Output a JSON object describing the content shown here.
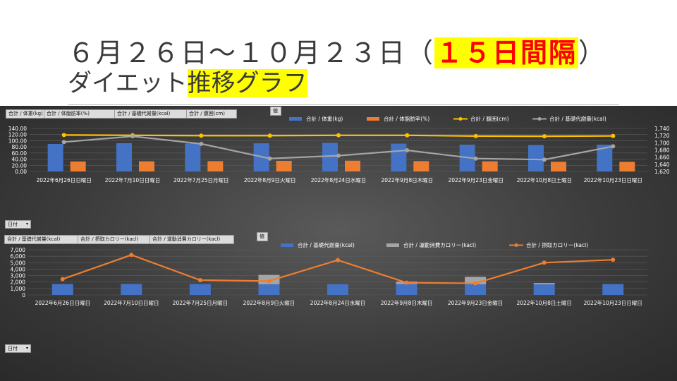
{
  "slide": {
    "title_prefix": "６月２６日～１０月２３日（",
    "title_highlight": "１５日間隔",
    "title_suffix": "）",
    "subtitle_prefix": "ダイエット",
    "subtitle_highlight": "推移グラフ"
  },
  "chart1_fields": [
    "合計 / 体重(kg)",
    "合計 / 体脂肪率(%)",
    "合計 / 基礎代謝量(kcal)",
    "合計 / 腹囲(cm)"
  ],
  "chart2_fields": [
    "合計 / 基礎代謝量(kcal)",
    "合計 / 摂取カロリー(kacl)",
    "合計 / 運動消費カロリー(kacl)"
  ],
  "values_button": "値",
  "date_filter": "日付",
  "colors": {
    "blue": "#4472c4",
    "orange": "#ed7d31",
    "gray": "#a5a5a5",
    "yellow": "#ffc000"
  },
  "chart_data": [
    {
      "type": "bar",
      "categories": [
        "2022年6月26日日曜日",
        "2022年7月10日日曜日",
        "2022年7月25日月曜日",
        "2022年8月9日火曜日",
        "2022年8月24日水曜日",
        "2022年9月8日木曜日",
        "2022年9月23日金曜日",
        "2022年10月8日土曜日",
        "2022年10月23日日曜日"
      ],
      "series": [
        {
          "name": "合計 / 体重(kg)",
          "kind": "bar",
          "axis": "left",
          "color": "#4472c4",
          "values": [
            89.5,
            92.0,
            91.0,
            91.5,
            93.0,
            90.5,
            87.0,
            86.0,
            87.0
          ]
        },
        {
          "name": "合計 / 体脂肪率(%)",
          "kind": "bar",
          "axis": "left",
          "color": "#ed7d31",
          "values": [
            32.5,
            33.0,
            33.5,
            34.5,
            35.0,
            33.5,
            33.0,
            31.5,
            31.5
          ]
        },
        {
          "name": "合計 / 腹囲(cm)",
          "kind": "line",
          "axis": "left",
          "color": "#ffc000",
          "values": [
            118.5,
            117.5,
            116.5,
            116.5,
            117.5,
            117.5,
            115.0,
            114.5,
            115.5
          ]
        },
        {
          "name": "合計 / 基礎代謝量(kcal)",
          "kind": "line",
          "axis": "right",
          "color": "#a5a5a5",
          "values": [
            1702,
            1718,
            1697,
            1656,
            1664,
            1679,
            1656,
            1653,
            1690
          ]
        }
      ],
      "y_left": {
        "ylim": [
          0,
          140
        ],
        "ticks": [
          "0.00",
          "20.00",
          "40.00",
          "60.00",
          "80.00",
          "100.00",
          "120.00",
          "140.00"
        ]
      },
      "y_right": {
        "ylim": [
          1620,
          1740
        ],
        "ticks": [
          "1,620",
          "1,640",
          "1,660",
          "1,680",
          "1,700",
          "1,720",
          "1,740"
        ]
      },
      "legend_position": "top",
      "grid": true
    },
    {
      "type": "bar",
      "categories": [
        "2022年6月26日日曜日",
        "2022年7月10日日曜日",
        "2022年7月25日月曜日",
        "2022年8月9日火曜日",
        "2022年8月24日水曜日",
        "2022年9月8日木曜日",
        "2022年9月23日金曜日",
        "2022年10月8日土曜日",
        "2022年10月23日日曜日"
      ],
      "series": [
        {
          "name": "合計 / 基礎代謝量(kcal)",
          "kind": "bar",
          "stack": "s",
          "color": "#4472c4",
          "values": [
            1702,
            1718,
            1697,
            1656,
            1664,
            1679,
            1656,
            1653,
            1690
          ]
        },
        {
          "name": "合計 / 運動消費カロリー(kacl)",
          "kind": "bar",
          "stack": "s",
          "color": "#a5a5a5",
          "values": [
            0,
            0,
            0,
            1450,
            0,
            400,
            1150,
            200,
            0
          ]
        },
        {
          "name": "合計 / 摂取カロリー(kacl)",
          "kind": "line",
          "color": "#ed7d31",
          "values": [
            2450,
            6200,
            2300,
            2150,
            5400,
            1900,
            1800,
            5000,
            5450
          ]
        }
      ],
      "y": {
        "ylim": [
          0,
          7000
        ],
        "ticks": [
          "0",
          "1,000",
          "2,000",
          "3,000",
          "4,000",
          "5,000",
          "6,000",
          "7,000"
        ]
      },
      "legend_position": "top",
      "grid": true
    }
  ]
}
